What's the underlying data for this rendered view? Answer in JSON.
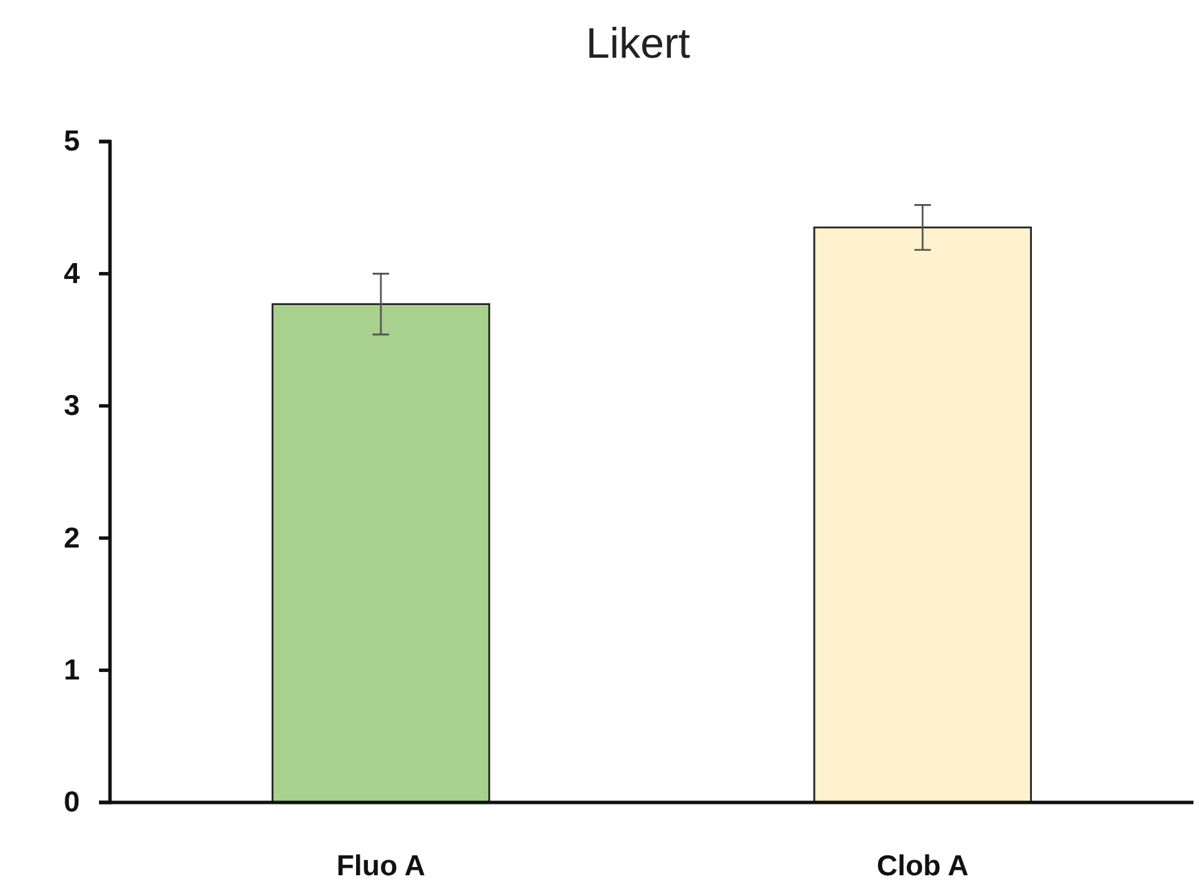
{
  "chart_data": {
    "type": "bar",
    "title": "Likert",
    "categories": [
      "Fluo A",
      "Clob A"
    ],
    "values": [
      3.77,
      4.35
    ],
    "errors": [
      0.23,
      0.17
    ],
    "colors": [
      "#a9d18e",
      "#fff2cc"
    ],
    "ylim": [
      0,
      5
    ],
    "yticks": [
      0,
      1,
      2,
      3,
      4,
      5
    ],
    "grid": false
  }
}
